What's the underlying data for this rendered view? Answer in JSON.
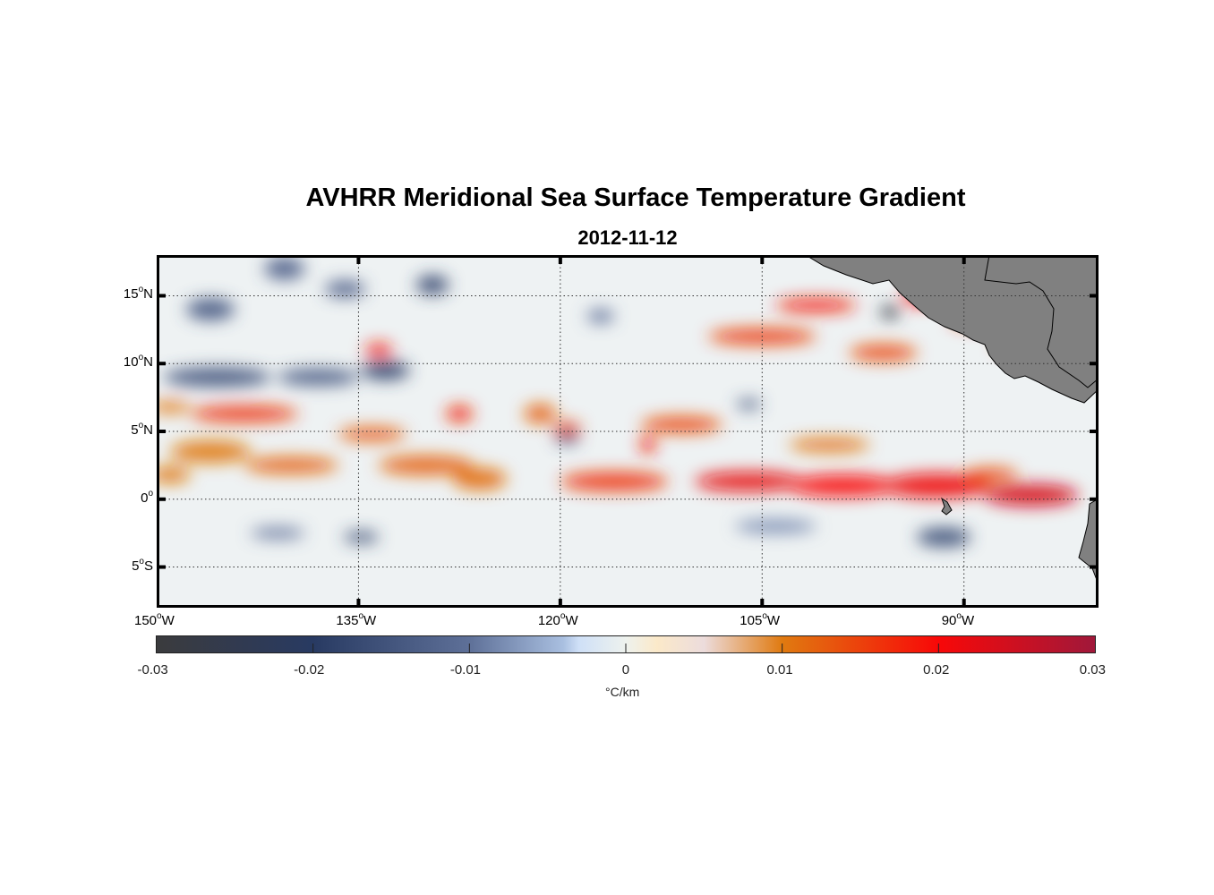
{
  "title": "AVHRR Meridional Sea Surface Temperature Gradient",
  "subtitle": "2012-11-12",
  "map": {
    "lon_range": [
      -150,
      -80
    ],
    "lat_range": [
      -8,
      18
    ],
    "lat_ticks": [
      {
        "value": 15,
        "deg": "15",
        "hemi": "N"
      },
      {
        "value": 10,
        "deg": "10",
        "hemi": "N"
      },
      {
        "value": 5,
        "deg": "5",
        "hemi": "N"
      },
      {
        "value": 0,
        "deg": "0",
        "hemi": ""
      },
      {
        "value": -5,
        "deg": "5",
        "hemi": "S"
      }
    ],
    "lon_ticks": [
      {
        "value": -150,
        "deg": "150",
        "hemi": "W"
      },
      {
        "value": -135,
        "deg": "135",
        "hemi": "W"
      },
      {
        "value": -120,
        "deg": "120",
        "hemi": "W"
      },
      {
        "value": -105,
        "deg": "105",
        "hemi": "W"
      },
      {
        "value": -90,
        "deg": "90",
        "hemi": "W"
      }
    ],
    "land_color": "#808080",
    "features": [
      {
        "lon": -143.5,
        "lat": 6.3,
        "v": 0.016,
        "rx": 4.0,
        "ry": 0.6
      },
      {
        "lon": -146,
        "lat": 3.5,
        "v": 0.01,
        "rx": 3,
        "ry": 0.8
      },
      {
        "lon": -149,
        "lat": 6.8,
        "v": 0.011,
        "rx": 1.5,
        "ry": 0.4
      },
      {
        "lon": -149,
        "lat": 1.8,
        "v": 0.01,
        "rx": 1.5,
        "ry": 0.6
      },
      {
        "lon": -140,
        "lat": 2.5,
        "v": 0.012,
        "rx": 3.5,
        "ry": 0.6
      },
      {
        "lon": -134,
        "lat": 4.8,
        "v": 0.013,
        "rx": 2.5,
        "ry": 0.5
      },
      {
        "lon": -130,
        "lat": 2.5,
        "v": 0.012,
        "rx": 3.5,
        "ry": 0.7
      },
      {
        "lon": -133.5,
        "lat": 11,
        "v": 0.018,
        "rx": 1.0,
        "ry": 0.5
      },
      {
        "lon": -127.5,
        "lat": 6.3,
        "v": 0.017,
        "rx": 1.0,
        "ry": 0.6
      },
      {
        "lon": -126,
        "lat": 1.5,
        "v": 0.011,
        "rx": 2.0,
        "ry": 0.8
      },
      {
        "lon": -121.5,
        "lat": 6.3,
        "v": 0.012,
        "rx": 1.2,
        "ry": 0.7
      },
      {
        "lon": -119.5,
        "lat": 5.2,
        "v": 0.014,
        "rx": 1.0,
        "ry": 0.5
      },
      {
        "lon": -116,
        "lat": 1.3,
        "v": 0.016,
        "rx": 4,
        "ry": 0.7
      },
      {
        "lon": -113.5,
        "lat": 4.0,
        "v": 0.018,
        "rx": 0.6,
        "ry": 0.6
      },
      {
        "lon": -111,
        "lat": 5.5,
        "v": 0.014,
        "rx": 3,
        "ry": 0.6
      },
      {
        "lon": -106,
        "lat": 1.3,
        "v": 0.022,
        "rx": 4,
        "ry": 0.7
      },
      {
        "lon": -99,
        "lat": 1.0,
        "v": 0.02,
        "rx": 4,
        "ry": 0.8
      },
      {
        "lon": -92,
        "lat": 1.0,
        "v": 0.021,
        "rx": 4,
        "ry": 0.9
      },
      {
        "lon": -85,
        "lat": 0.3,
        "v": 0.024,
        "rx": 3.5,
        "ry": 0.8
      },
      {
        "lon": -88,
        "lat": 1.8,
        "v": 0.014,
        "rx": 2,
        "ry": 0.5
      },
      {
        "lon": -100,
        "lat": 4.0,
        "v": 0.011,
        "rx": 3,
        "ry": 0.5
      },
      {
        "lon": -105,
        "lat": 12.0,
        "v": 0.015,
        "rx": 4,
        "ry": 0.6
      },
      {
        "lon": -101,
        "lat": 14.3,
        "v": 0.018,
        "rx": 3,
        "ry": 0.5
      },
      {
        "lon": -96,
        "lat": 10.8,
        "v": 0.014,
        "rx": 2.5,
        "ry": 0.6
      },
      {
        "lon": -93.2,
        "lat": 15.0,
        "v": 0.02,
        "rx": 1.3,
        "ry": 0.7
      },
      {
        "lon": -89,
        "lat": 13.3,
        "v": 0.016,
        "rx": 2,
        "ry": 0.6
      },
      {
        "lon": -86.5,
        "lat": 11.5,
        "v": 0.013,
        "rx": 1.2,
        "ry": 0.6
      },
      {
        "lon": -145.5,
        "lat": 9.0,
        "v": -0.015,
        "rx": 4,
        "ry": 0.7
      },
      {
        "lon": -138,
        "lat": 9.0,
        "v": -0.014,
        "rx": 3,
        "ry": 0.6
      },
      {
        "lon": -133,
        "lat": 9.5,
        "v": -0.018,
        "rx": 1.8,
        "ry": 0.7
      },
      {
        "lon": -146,
        "lat": 14.0,
        "v": -0.014,
        "rx": 1.8,
        "ry": 0.8
      },
      {
        "lon": -140.5,
        "lat": 17.0,
        "v": -0.013,
        "rx": 1.5,
        "ry": 0.8
      },
      {
        "lon": -136,
        "lat": 15.5,
        "v": -0.013,
        "rx": 1.5,
        "ry": 0.6
      },
      {
        "lon": -129.5,
        "lat": 15.8,
        "v": -0.018,
        "rx": 1.2,
        "ry": 0.7
      },
      {
        "lon": -134.8,
        "lat": -2.8,
        "v": -0.017,
        "rx": 1.3,
        "ry": 0.4
      },
      {
        "lon": -141,
        "lat": -2.5,
        "v": -0.01,
        "rx": 2,
        "ry": 0.4
      },
      {
        "lon": -95.5,
        "lat": 13.8,
        "v": -0.028,
        "rx": 0.7,
        "ry": 0.5
      },
      {
        "lon": -91.5,
        "lat": -2.8,
        "v": -0.016,
        "rx": 2,
        "ry": 0.7
      },
      {
        "lon": -119.5,
        "lat": 4.5,
        "v": -0.016,
        "rx": 0.9,
        "ry": 0.4
      },
      {
        "lon": -106,
        "lat": 7.0,
        "v": -0.015,
        "rx": 0.9,
        "ry": 0.35
      },
      {
        "lon": -117,
        "lat": 13.5,
        "v": -0.01,
        "rx": 1,
        "ry": 0.5
      },
      {
        "lon": -104,
        "lat": -2.0,
        "v": -0.008,
        "rx": 3,
        "ry": 0.5
      }
    ]
  },
  "colorbar": {
    "range": [
      -0.03,
      0.03
    ],
    "ticks": [
      "-0.03",
      "-0.02",
      "-0.01",
      "0",
      "0.01",
      "0.02",
      "0.03"
    ],
    "units": "°C/km",
    "stops": [
      {
        "v": -0.03,
        "color": "#3b3b3d"
      },
      {
        "v": -0.02,
        "color": "#283a62"
      },
      {
        "v": -0.01,
        "color": "#5e7098"
      },
      {
        "v": -0.004,
        "color": "#a9bfe0"
      },
      {
        "v": -0.003,
        "color": "#cfe0f7"
      },
      {
        "v": 0,
        "color": "#eef2ee"
      },
      {
        "v": 0.002,
        "color": "#fbe9c9"
      },
      {
        "v": 0.005,
        "color": "#ecdcdc"
      },
      {
        "v": 0.01,
        "color": "#e07a10"
      },
      {
        "v": 0.02,
        "color": "#f80808"
      },
      {
        "v": 0.03,
        "color": "#a0183a"
      }
    ]
  }
}
